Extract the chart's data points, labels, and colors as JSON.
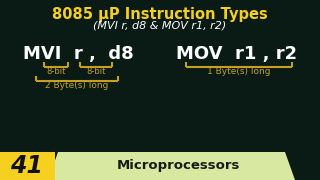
{
  "bg_color": "#0a1a14",
  "title_line1": "8085 μP Instruction Types",
  "title_line2": "(MVI r, d8 & MOV r1, r2)",
  "title_color": "#f5d020",
  "white_color": "#ffffff",
  "yellow_color": "#c8a020",
  "bracket_color": "#c8a020",
  "label_8bit_1": "8-bit",
  "label_8bit_2": "8-bit",
  "label_2byte": "2 Byte(s) long",
  "label_1byte": "1 Byte(s) long",
  "footer_num": "41",
  "footer_text": "Microprocessors",
  "footer_bg": "#f5d020",
  "footer_text_bg": "#d8e8a0",
  "footer_text_color": "#1a1a1a"
}
